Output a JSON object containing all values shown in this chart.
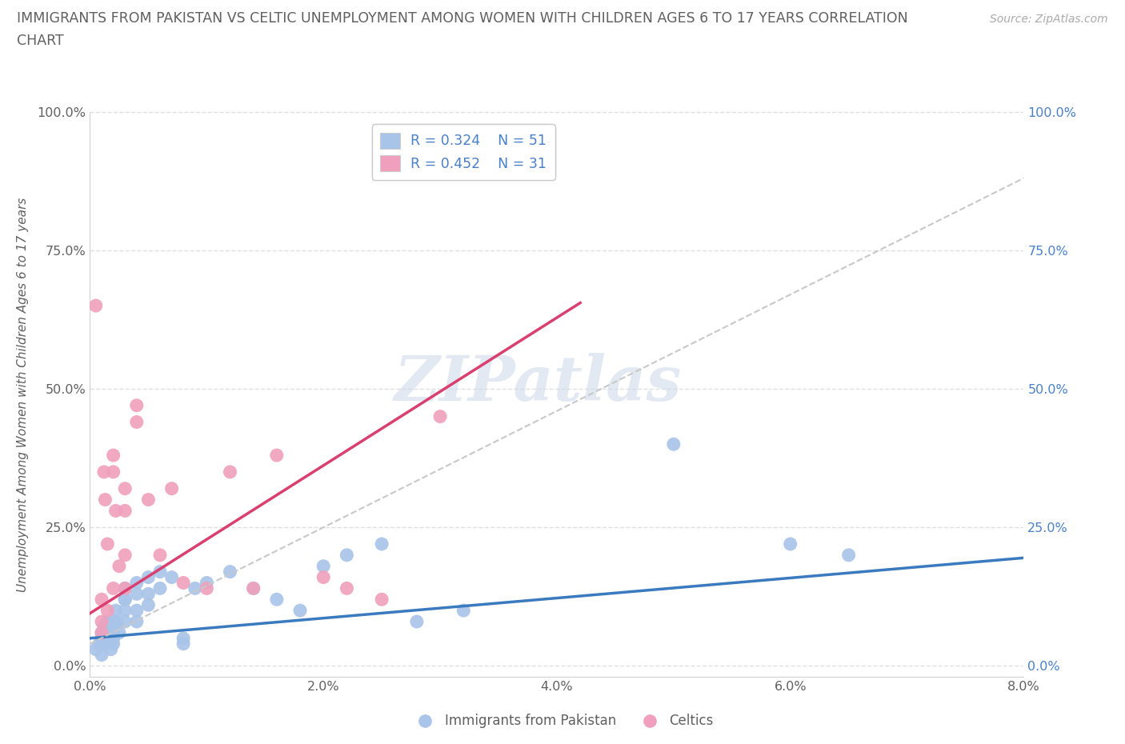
{
  "title_line1": "IMMIGRANTS FROM PAKISTAN VS CELTIC UNEMPLOYMENT AMONG WOMEN WITH CHILDREN AGES 6 TO 17 YEARS CORRELATION",
  "title_line2": "CHART",
  "source": "Source: ZipAtlas.com",
  "ylabel": "Unemployment Among Women with Children Ages 6 to 17 years",
  "xlim": [
    0.0,
    0.08
  ],
  "ylim": [
    -0.02,
    1.0
  ],
  "xtick_labels": [
    "0.0%",
    "2.0%",
    "4.0%",
    "6.0%",
    "8.0%"
  ],
  "xtick_vals": [
    0.0,
    0.02,
    0.04,
    0.06,
    0.08
  ],
  "ytick_labels": [
    "0.0%",
    "25.0%",
    "50.0%",
    "75.0%",
    "100.0%"
  ],
  "ytick_vals": [
    0.0,
    0.25,
    0.5,
    0.75,
    1.0
  ],
  "blue_color": "#a8c4e8",
  "pink_color": "#f0a0bc",
  "blue_line_color": "#3a7abf",
  "pink_line_color": "#d94070",
  "dash_line_color": "#c8c8c8",
  "watermark": "ZIPatlas",
  "watermark_color": "#ccd8e8",
  "blue_scatter_x": [
    0.0005,
    0.0008,
    0.001,
    0.001,
    0.001,
    0.0012,
    0.0013,
    0.0013,
    0.0015,
    0.0015,
    0.0015,
    0.0018,
    0.002,
    0.002,
    0.002,
    0.002,
    0.002,
    0.0022,
    0.0023,
    0.0025,
    0.003,
    0.003,
    0.003,
    0.003,
    0.003,
    0.004,
    0.004,
    0.004,
    0.004,
    0.005,
    0.005,
    0.005,
    0.006,
    0.006,
    0.007,
    0.008,
    0.008,
    0.009,
    0.01,
    0.012,
    0.014,
    0.016,
    0.018,
    0.02,
    0.022,
    0.025,
    0.028,
    0.032,
    0.05,
    0.06,
    0.065
  ],
  "blue_scatter_y": [
    0.03,
    0.04,
    0.05,
    0.06,
    0.02,
    0.07,
    0.04,
    0.05,
    0.06,
    0.08,
    0.05,
    0.03,
    0.06,
    0.04,
    0.07,
    0.08,
    0.05,
    0.1,
    0.08,
    0.06,
    0.12,
    0.1,
    0.08,
    0.14,
    0.12,
    0.15,
    0.13,
    0.1,
    0.08,
    0.16,
    0.13,
    0.11,
    0.17,
    0.14,
    0.16,
    0.05,
    0.04,
    0.14,
    0.15,
    0.17,
    0.14,
    0.12,
    0.1,
    0.18,
    0.2,
    0.22,
    0.08,
    0.1,
    0.4,
    0.22,
    0.2
  ],
  "pink_scatter_x": [
    0.0005,
    0.001,
    0.001,
    0.001,
    0.0012,
    0.0013,
    0.0015,
    0.0015,
    0.002,
    0.002,
    0.002,
    0.0022,
    0.0025,
    0.003,
    0.003,
    0.003,
    0.003,
    0.004,
    0.004,
    0.005,
    0.006,
    0.007,
    0.008,
    0.01,
    0.012,
    0.014,
    0.016,
    0.02,
    0.022,
    0.025,
    0.03
  ],
  "pink_scatter_y": [
    0.65,
    0.12,
    0.08,
    0.06,
    0.35,
    0.3,
    0.22,
    0.1,
    0.38,
    0.35,
    0.14,
    0.28,
    0.18,
    0.32,
    0.28,
    0.2,
    0.14,
    0.47,
    0.44,
    0.3,
    0.2,
    0.32,
    0.15,
    0.14,
    0.35,
    0.14,
    0.38,
    0.16,
    0.14,
    0.12,
    0.45
  ],
  "blue_trend_x": [
    0.0,
    0.08
  ],
  "blue_trend_y": [
    0.05,
    0.195
  ],
  "pink_trend_x": [
    0.0,
    0.042
  ],
  "pink_trend_y": [
    0.095,
    0.655
  ],
  "dash_trend_x": [
    0.0,
    0.08
  ],
  "dash_trend_y": [
    0.04,
    0.88
  ],
  "background_color": "#ffffff",
  "grid_color": "#e0e0e0",
  "title_color": "#606060",
  "axis_label_color": "#606060",
  "tick_color": "#606060",
  "right_tick_color": "#4a80c8",
  "legend_text_color": "#4a80c8"
}
